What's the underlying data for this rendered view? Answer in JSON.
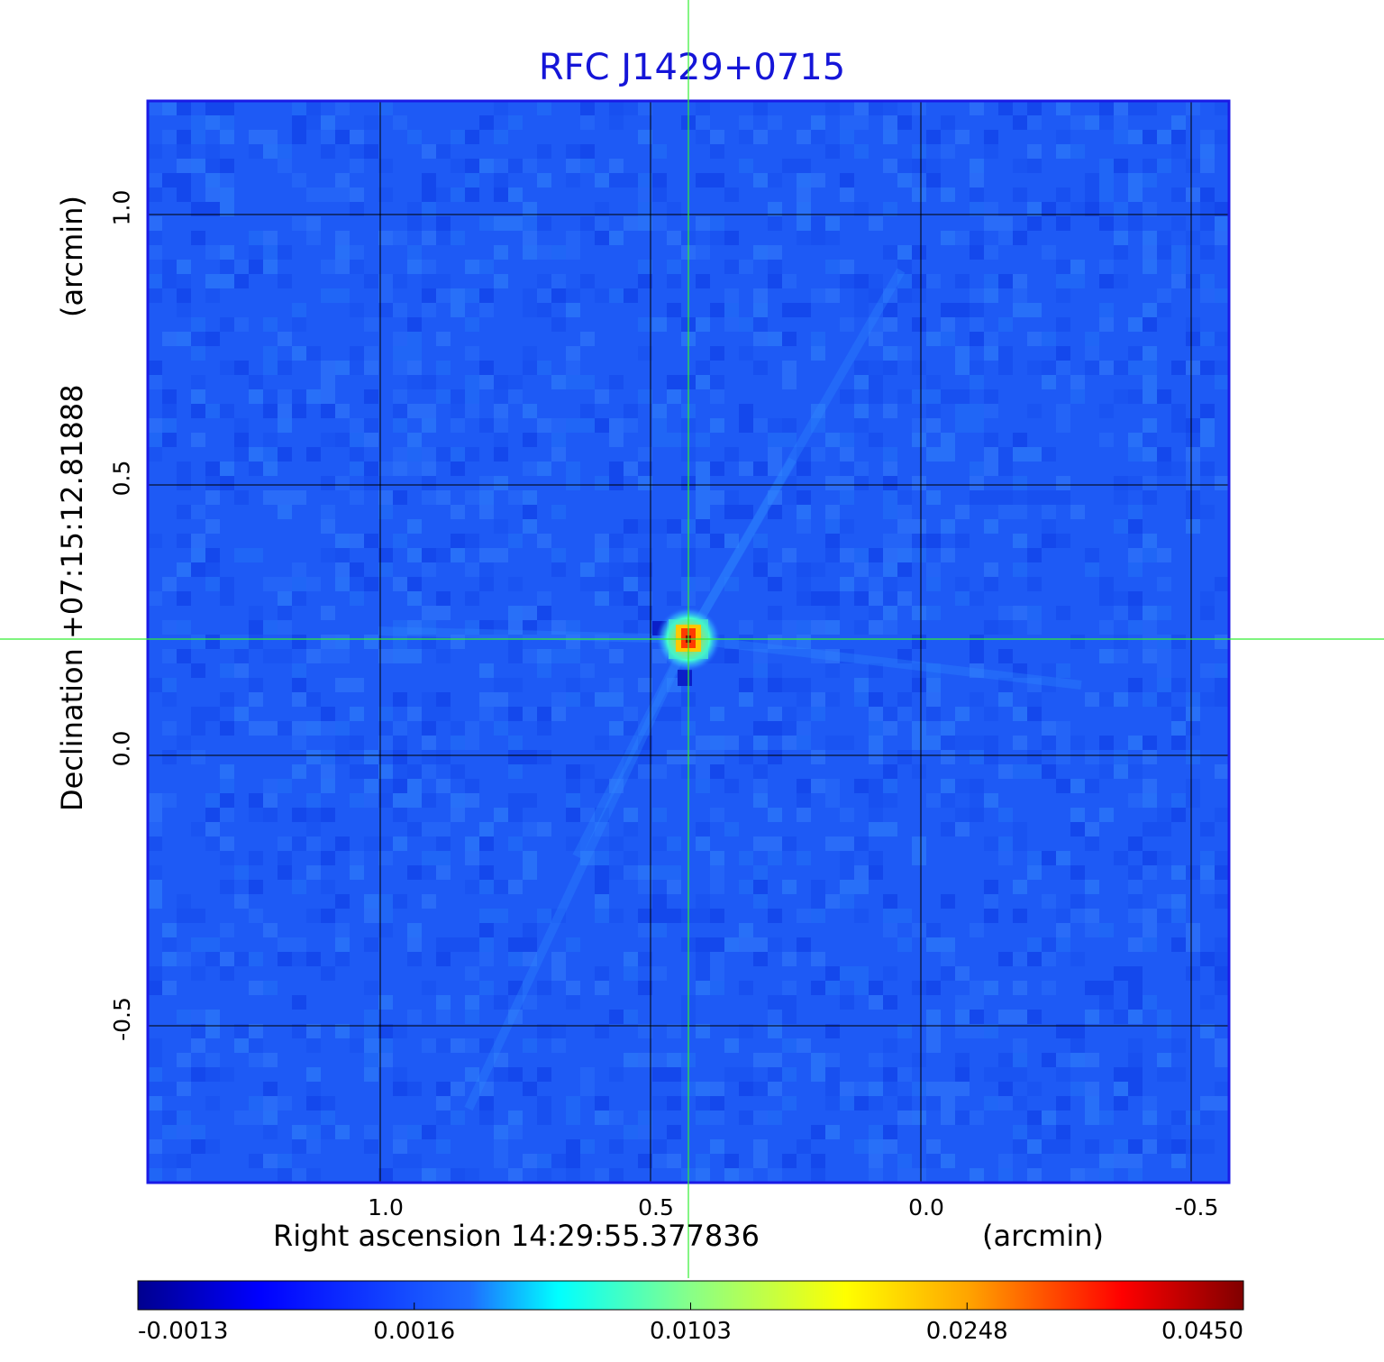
{
  "chart_data": {
    "type": "heatmap",
    "title": "RFC J1429+0715",
    "xlabel": "Right ascension  14:29:55.377836",
    "xunit": "(arcmin)",
    "ylabel": "Declination  +07:15:12.81888",
    "yunit": "(arcmin)",
    "xlim": [
      1.43,
      -0.57
    ],
    "ylim": [
      -0.79,
      1.21
    ],
    "xticks": [
      "1.0",
      "0.5",
      "0.0",
      "-0.5"
    ],
    "xtick_values": [
      1.0,
      0.5,
      0.0,
      -0.5
    ],
    "yticks": [
      "1.0",
      "0.5",
      "0.0",
      "-0.5"
    ],
    "ytick_values": [
      1.0,
      0.5,
      0.0,
      -0.5
    ],
    "grid": true,
    "crosshair": {
      "x": 0.43,
      "y": 0.215,
      "color": "#33ee33"
    },
    "source_peak": {
      "x": 0.43,
      "y": 0.215,
      "value": 0.045
    },
    "colormap": "jet",
    "colorbar": {
      "ticks": [
        "-0.0013",
        "0.0016",
        "0.0103",
        "0.0248",
        "0.0450"
      ],
      "tick_values": [
        -0.0013,
        0.0016,
        0.0103,
        0.0248,
        0.045
      ],
      "range": [
        -0.0013,
        0.045
      ]
    },
    "colors": {
      "title": "#1515d8",
      "frame": "#1a1ae6",
      "crosshair": "#33ee33",
      "background_field": "#1e5af5"
    }
  }
}
